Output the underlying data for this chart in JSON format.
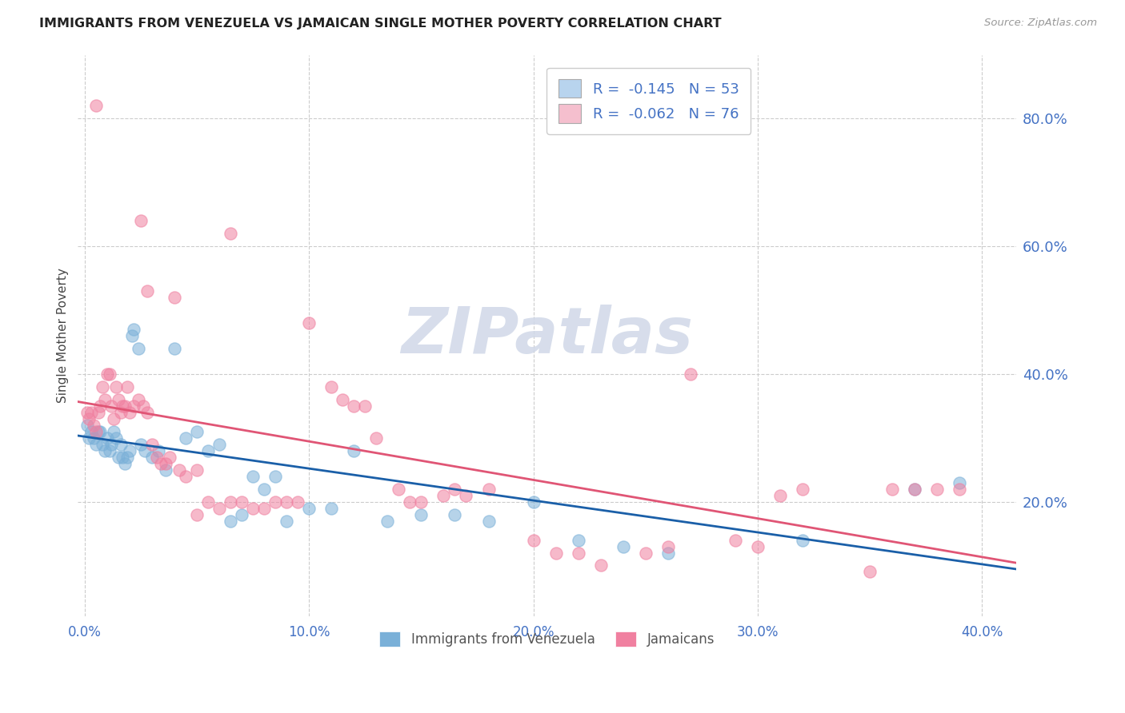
{
  "title": "IMMIGRANTS FROM VENEZUELA VS JAMAICAN SINGLE MOTHER POVERTY CORRELATION CHART",
  "source": "Source: ZipAtlas.com",
  "ylabel": "Single Mother Poverty",
  "ytick_labels": [
    "20.0%",
    "40.0%",
    "60.0%",
    "80.0%"
  ],
  "ytick_values": [
    0.2,
    0.4,
    0.6,
    0.8
  ],
  "xtick_values": [
    0.0,
    0.1,
    0.2,
    0.3,
    0.4
  ],
  "xtick_labels": [
    "0.0%",
    "10.0%",
    "20.0%",
    "30.0%",
    "40.0%"
  ],
  "xlim": [
    -0.003,
    0.415
  ],
  "ylim": [
    0.02,
    0.9
  ],
  "legend_entries": [
    {
      "label": "R =  -0.145   N = 53",
      "facecolor": "#b8d4ee"
    },
    {
      "label": "R =  -0.062   N = 76",
      "facecolor": "#f5bfce"
    }
  ],
  "watermark": "ZIPatlas",
  "legend_label_venezuela": "Immigrants from Venezuela",
  "legend_label_jamaicans": "Jamaicans",
  "venezuela_color": "#7ab0d8",
  "jamaicans_color": "#f080a0",
  "trendline_venezuela_color": "#1a5fa8",
  "trendline_jamaicans_color": "#e05575",
  "venezuela_points": [
    [
      0.001,
      0.32
    ],
    [
      0.002,
      0.3
    ],
    [
      0.003,
      0.31
    ],
    [
      0.004,
      0.3
    ],
    [
      0.005,
      0.29
    ],
    [
      0.006,
      0.31
    ],
    [
      0.007,
      0.31
    ],
    [
      0.008,
      0.29
    ],
    [
      0.009,
      0.28
    ],
    [
      0.01,
      0.3
    ],
    [
      0.011,
      0.28
    ],
    [
      0.012,
      0.29
    ],
    [
      0.013,
      0.31
    ],
    [
      0.014,
      0.3
    ],
    [
      0.015,
      0.27
    ],
    [
      0.016,
      0.29
    ],
    [
      0.017,
      0.27
    ],
    [
      0.018,
      0.26
    ],
    [
      0.019,
      0.27
    ],
    [
      0.02,
      0.28
    ],
    [
      0.021,
      0.46
    ],
    [
      0.022,
      0.47
    ],
    [
      0.024,
      0.44
    ],
    [
      0.025,
      0.29
    ],
    [
      0.027,
      0.28
    ],
    [
      0.03,
      0.27
    ],
    [
      0.033,
      0.28
    ],
    [
      0.036,
      0.25
    ],
    [
      0.04,
      0.44
    ],
    [
      0.045,
      0.3
    ],
    [
      0.05,
      0.31
    ],
    [
      0.055,
      0.28
    ],
    [
      0.06,
      0.29
    ],
    [
      0.065,
      0.17
    ],
    [
      0.07,
      0.18
    ],
    [
      0.075,
      0.24
    ],
    [
      0.08,
      0.22
    ],
    [
      0.085,
      0.24
    ],
    [
      0.09,
      0.17
    ],
    [
      0.1,
      0.19
    ],
    [
      0.11,
      0.19
    ],
    [
      0.12,
      0.28
    ],
    [
      0.135,
      0.17
    ],
    [
      0.15,
      0.18
    ],
    [
      0.165,
      0.18
    ],
    [
      0.18,
      0.17
    ],
    [
      0.2,
      0.2
    ],
    [
      0.22,
      0.14
    ],
    [
      0.24,
      0.13
    ],
    [
      0.26,
      0.12
    ],
    [
      0.32,
      0.14
    ],
    [
      0.37,
      0.22
    ],
    [
      0.39,
      0.23
    ]
  ],
  "jamaicans_points": [
    [
      0.001,
      0.34
    ],
    [
      0.002,
      0.33
    ],
    [
      0.003,
      0.34
    ],
    [
      0.004,
      0.32
    ],
    [
      0.005,
      0.31
    ],
    [
      0.006,
      0.34
    ],
    [
      0.007,
      0.35
    ],
    [
      0.008,
      0.38
    ],
    [
      0.009,
      0.36
    ],
    [
      0.01,
      0.4
    ],
    [
      0.011,
      0.4
    ],
    [
      0.012,
      0.35
    ],
    [
      0.013,
      0.33
    ],
    [
      0.014,
      0.38
    ],
    [
      0.015,
      0.36
    ],
    [
      0.016,
      0.34
    ],
    [
      0.017,
      0.35
    ],
    [
      0.018,
      0.35
    ],
    [
      0.019,
      0.38
    ],
    [
      0.02,
      0.34
    ],
    [
      0.022,
      0.35
    ],
    [
      0.024,
      0.36
    ],
    [
      0.026,
      0.35
    ],
    [
      0.028,
      0.34
    ],
    [
      0.03,
      0.29
    ],
    [
      0.032,
      0.27
    ],
    [
      0.034,
      0.26
    ],
    [
      0.036,
      0.26
    ],
    [
      0.038,
      0.27
    ],
    [
      0.04,
      0.52
    ],
    [
      0.042,
      0.25
    ],
    [
      0.045,
      0.24
    ],
    [
      0.05,
      0.25
    ],
    [
      0.055,
      0.2
    ],
    [
      0.06,
      0.19
    ],
    [
      0.065,
      0.2
    ],
    [
      0.07,
      0.2
    ],
    [
      0.075,
      0.19
    ],
    [
      0.08,
      0.19
    ],
    [
      0.085,
      0.2
    ],
    [
      0.09,
      0.2
    ],
    [
      0.095,
      0.2
    ],
    [
      0.1,
      0.48
    ],
    [
      0.11,
      0.38
    ],
    [
      0.115,
      0.36
    ],
    [
      0.12,
      0.35
    ],
    [
      0.125,
      0.35
    ],
    [
      0.13,
      0.3
    ],
    [
      0.14,
      0.22
    ],
    [
      0.145,
      0.2
    ],
    [
      0.15,
      0.2
    ],
    [
      0.16,
      0.21
    ],
    [
      0.165,
      0.22
    ],
    [
      0.17,
      0.21
    ],
    [
      0.18,
      0.22
    ],
    [
      0.2,
      0.14
    ],
    [
      0.21,
      0.12
    ],
    [
      0.22,
      0.12
    ],
    [
      0.23,
      0.1
    ],
    [
      0.25,
      0.12
    ],
    [
      0.26,
      0.13
    ],
    [
      0.27,
      0.4
    ],
    [
      0.29,
      0.14
    ],
    [
      0.3,
      0.13
    ],
    [
      0.31,
      0.21
    ],
    [
      0.32,
      0.22
    ],
    [
      0.35,
      0.09
    ],
    [
      0.36,
      0.22
    ],
    [
      0.37,
      0.22
    ],
    [
      0.38,
      0.22
    ],
    [
      0.39,
      0.22
    ],
    [
      0.005,
      0.82
    ],
    [
      0.025,
      0.64
    ],
    [
      0.028,
      0.53
    ],
    [
      0.065,
      0.62
    ],
    [
      0.05,
      0.18
    ]
  ]
}
